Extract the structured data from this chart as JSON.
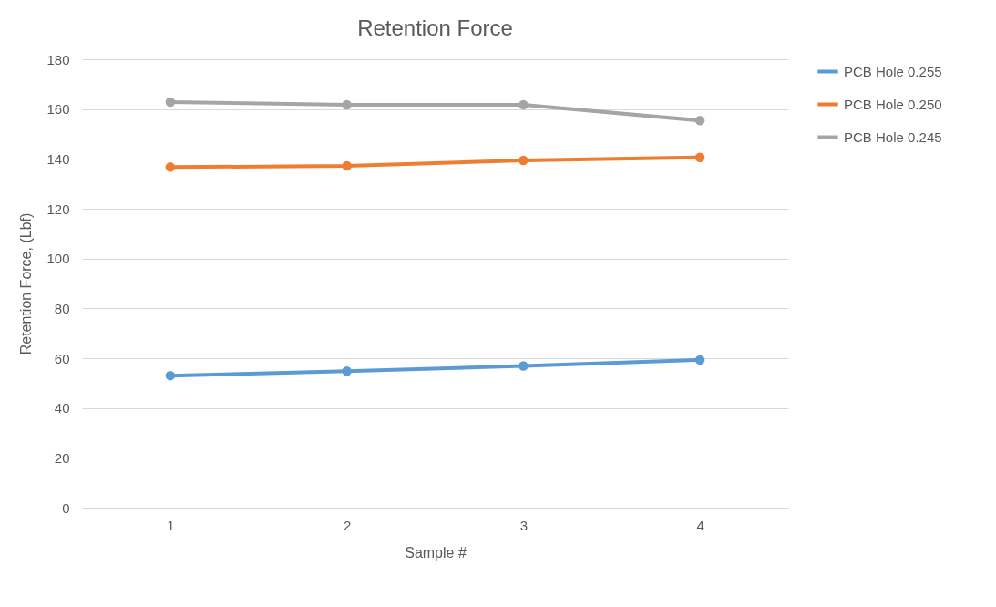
{
  "chart_data": {
    "type": "line",
    "title": "Retention Force",
    "xlabel": "Sample #",
    "ylabel": "Retention Force, (Lbf)",
    "categories": [
      "1",
      "2",
      "3",
      "4"
    ],
    "series": [
      {
        "name": "PCB Hole 0.255",
        "color": "#5b9bd5",
        "values": [
          53.0,
          54.8,
          56.9,
          59.3
        ]
      },
      {
        "name": "PCB Hole 0.250",
        "color": "#ed7d31",
        "values": [
          136.7,
          137.2,
          139.4,
          140.6
        ]
      },
      {
        "name": "PCB Hole 0.245",
        "color": "#a5a5a5",
        "values": [
          162.8,
          161.7,
          161.7,
          155.4
        ]
      }
    ],
    "ylim": [
      0,
      180
    ],
    "yticks": [
      0,
      20,
      40,
      60,
      80,
      100,
      120,
      140,
      160,
      180
    ],
    "grid": "y",
    "legend": "right",
    "marker": "circle",
    "line_style": "solid"
  }
}
